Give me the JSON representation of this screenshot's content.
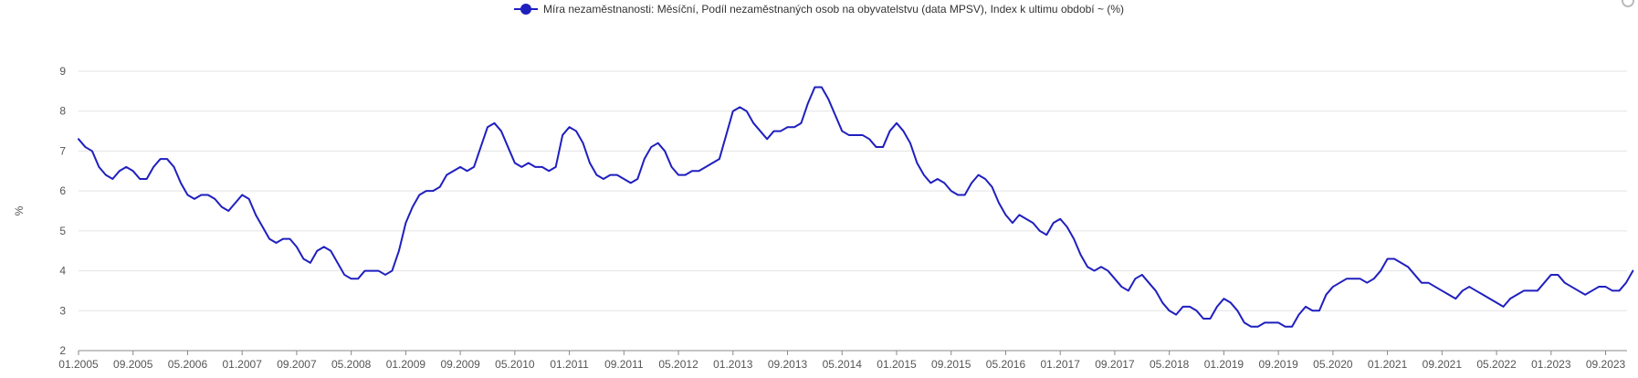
{
  "legend": {
    "label": "Míra nezaměstnanosti: Měsíční, Podíl nezaměstnaných osob na obyvatelstvu (data MPSV), Index k ultimu období ~ (%)",
    "color": "#1f1fbf"
  },
  "chart_data": {
    "type": "line",
    "title": "",
    "xlabel": "",
    "ylabel": "%",
    "ylim": [
      2,
      9
    ],
    "yticks": [
      "2",
      "3",
      "4",
      "5",
      "6",
      "7",
      "8",
      "9"
    ],
    "grid": true,
    "legend_position": "top-center",
    "xtick_labels": [
      "01.2005",
      "09.2005",
      "05.2006",
      "01.2007",
      "09.2007",
      "05.2008",
      "01.2009",
      "09.2009",
      "05.2010",
      "01.2011",
      "09.2011",
      "05.2012",
      "01.2013",
      "09.2013",
      "05.2014",
      "01.2015",
      "09.2015",
      "05.2016",
      "01.2017",
      "09.2017",
      "05.2018",
      "01.2019",
      "09.2019",
      "05.2020",
      "01.2021",
      "09.2021",
      "05.2022",
      "01.2023",
      "09.2023"
    ],
    "x_start": "01.2005",
    "series": [
      {
        "name": "Míra nezaměstnanosti: Měsíční, Podíl nezaměstnaných osob na obyvatelstvu (data MPSV), Index k ultimu období ~ (%)",
        "color": "#1f1fbf",
        "values": [
          7.3,
          7.1,
          7.0,
          6.6,
          6.4,
          6.3,
          6.5,
          6.6,
          6.5,
          6.3,
          6.3,
          6.6,
          6.8,
          6.8,
          6.6,
          6.2,
          5.9,
          5.8,
          5.9,
          5.9,
          5.8,
          5.6,
          5.5,
          5.7,
          5.9,
          5.8,
          5.4,
          5.1,
          4.8,
          4.7,
          4.8,
          4.8,
          4.6,
          4.3,
          4.2,
          4.5,
          4.6,
          4.5,
          4.2,
          3.9,
          3.8,
          3.8,
          4.0,
          4.0,
          4.0,
          3.9,
          4.0,
          4.5,
          5.2,
          5.6,
          5.9,
          6.0,
          6.0,
          6.1,
          6.4,
          6.5,
          6.6,
          6.5,
          6.6,
          7.1,
          7.6,
          7.7,
          7.5,
          7.1,
          6.7,
          6.6,
          6.7,
          6.6,
          6.6,
          6.5,
          6.6,
          7.4,
          7.6,
          7.5,
          7.2,
          6.7,
          6.4,
          6.3,
          6.4,
          6.4,
          6.3,
          6.2,
          6.3,
          6.8,
          7.1,
          7.2,
          7.0,
          6.6,
          6.4,
          6.4,
          6.5,
          6.5,
          6.6,
          6.7,
          6.8,
          7.4,
          8.0,
          8.1,
          8.0,
          7.7,
          7.5,
          7.3,
          7.5,
          7.5,
          7.6,
          7.6,
          7.7,
          8.2,
          8.6,
          8.6,
          8.3,
          7.9,
          7.5,
          7.4,
          7.4,
          7.4,
          7.3,
          7.1,
          7.1,
          7.5,
          7.7,
          7.5,
          7.2,
          6.7,
          6.4,
          6.2,
          6.3,
          6.2,
          6.0,
          5.9,
          5.9,
          6.2,
          6.4,
          6.3,
          6.1,
          5.7,
          5.4,
          5.2,
          5.4,
          5.3,
          5.2,
          5.0,
          4.9,
          5.2,
          5.3,
          5.1,
          4.8,
          4.4,
          4.1,
          4.0,
          4.1,
          4.0,
          3.8,
          3.6,
          3.5,
          3.8,
          3.9,
          3.7,
          3.5,
          3.2,
          3.0,
          2.9,
          3.1,
          3.1,
          3.0,
          2.8,
          2.8,
          3.1,
          3.3,
          3.2,
          3.0,
          2.7,
          2.6,
          2.6,
          2.7,
          2.7,
          2.7,
          2.6,
          2.6,
          2.9,
          3.1,
          3.0,
          3.0,
          3.4,
          3.6,
          3.7,
          3.8,
          3.8,
          3.8,
          3.7,
          3.8,
          4.0,
          4.3,
          4.3,
          4.2,
          4.1,
          3.9,
          3.7,
          3.7,
          3.6,
          3.5,
          3.4,
          3.3,
          3.5,
          3.6,
          3.5,
          3.4,
          3.3,
          3.2,
          3.1,
          3.3,
          3.4,
          3.5,
          3.5,
          3.5,
          3.7,
          3.9,
          3.9,
          3.7,
          3.6,
          3.5,
          3.4,
          3.5,
          3.6,
          3.6,
          3.5,
          3.5,
          3.7,
          4.0
        ]
      }
    ]
  }
}
